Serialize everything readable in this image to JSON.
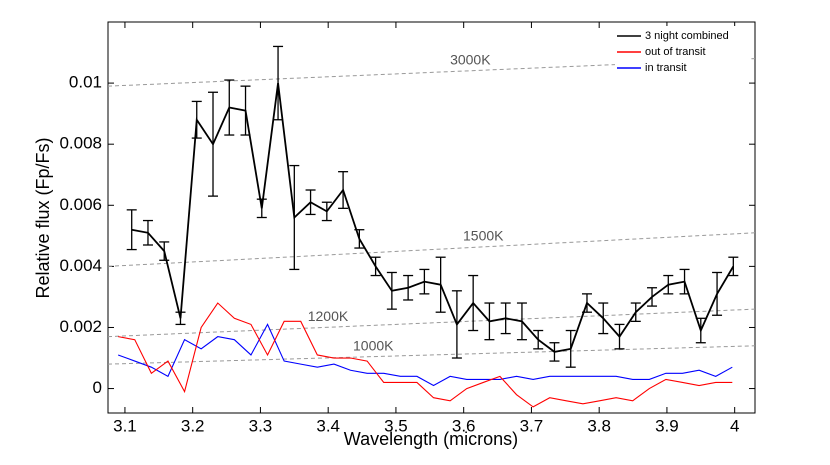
{
  "chart_data": {
    "type": "line",
    "xlabel": "Wavelength (microns)",
    "ylabel": "Relative flux (Fp/Fs)",
    "xlim": [
      3.075,
      4.03
    ],
    "ylim": [
      -0.0008,
      0.012
    ],
    "xticks": [
      3.1,
      3.2,
      3.3,
      3.4,
      3.5,
      3.6,
      3.7,
      3.8,
      3.9,
      4
    ],
    "yticks": [
      0,
      0.002,
      0.004,
      0.006,
      0.008,
      0.01
    ],
    "legend": "upper right",
    "series": [
      {
        "name": "3 night combined",
        "color": "#000000",
        "x": [
          3.11,
          3.134,
          3.158,
          3.182,
          3.206,
          3.23,
          3.254,
          3.278,
          3.302,
          3.326,
          3.35,
          3.374,
          3.398,
          3.422,
          3.446,
          3.47,
          3.494,
          3.518,
          3.542,
          3.566,
          3.59,
          3.614,
          3.638,
          3.662,
          3.686,
          3.71,
          3.734,
          3.758,
          3.782,
          3.806,
          3.83,
          3.854,
          3.878,
          3.902,
          3.926,
          3.95,
          3.974,
          3.998
        ],
        "values": [
          0.0052,
          0.0051,
          0.0045,
          0.0023,
          0.0088,
          0.008,
          0.0092,
          0.0091,
          0.0059,
          0.01,
          0.0056,
          0.0061,
          0.0058,
          0.0065,
          0.0049,
          0.004,
          0.0032,
          0.0033,
          0.0035,
          0.0034,
          0.0021,
          0.0028,
          0.0022,
          0.0023,
          0.0022,
          0.0016,
          0.0012,
          0.0013,
          0.0028,
          0.0023,
          0.0017,
          0.0025,
          0.003,
          0.0034,
          0.0035,
          0.0019,
          0.0031,
          0.004
        ],
        "errors": [
          0.00065,
          0.0004,
          0.0003,
          0.0002,
          0.0006,
          0.0017,
          0.0009,
          0.0008,
          0.0003,
          0.0012,
          0.0017,
          0.0004,
          0.0003,
          0.0006,
          0.0003,
          0.0003,
          0.0006,
          0.0004,
          0.0004,
          0.0009,
          0.0011,
          0.0009,
          0.0006,
          0.0005,
          0.0006,
          0.0003,
          0.0003,
          0.0006,
          0.0003,
          0.0005,
          0.0004,
          0.0003,
          0.0003,
          0.0003,
          0.0004,
          0.0004,
          0.0007,
          0.0003
        ]
      },
      {
        "name": "out of transit",
        "color": "#ff0000",
        "x": [
          3.09,
          3.1145,
          3.139,
          3.1635,
          3.188,
          3.2125,
          3.237,
          3.2615,
          3.286,
          3.3105,
          3.335,
          3.3595,
          3.384,
          3.4085,
          3.433,
          3.4575,
          3.482,
          3.5065,
          3.531,
          3.5555,
          3.58,
          3.6045,
          3.629,
          3.6535,
          3.678,
          3.7025,
          3.727,
          3.7515,
          3.776,
          3.8005,
          3.825,
          3.8495,
          3.874,
          3.8985,
          3.923,
          3.9475,
          3.972,
          3.9965
        ],
        "values": [
          0.0017,
          0.0016,
          0.0005,
          0.0009,
          -0.0001,
          0.002,
          0.0028,
          0.0023,
          0.0021,
          0.0011,
          0.0022,
          0.0022,
          0.0011,
          0.001,
          0.001,
          0.0009,
          0.0002,
          0.0002,
          0.0002,
          -0.0003,
          -0.0004,
          0,
          0.0002,
          0.0004,
          -0.0002,
          -0.0006,
          -0.0003,
          -0.0004,
          -0.0005,
          -0.0004,
          -0.0003,
          -0.0004,
          0,
          0.0003,
          0.0002,
          0.0001,
          0.0002,
          0.0002
        ]
      },
      {
        "name": "in transit",
        "color": "#0000ff",
        "x": [
          3.09,
          3.1145,
          3.139,
          3.1635,
          3.188,
          3.2125,
          3.237,
          3.2615,
          3.286,
          3.3105,
          3.335,
          3.3595,
          3.384,
          3.4085,
          3.433,
          3.4575,
          3.482,
          3.5065,
          3.531,
          3.5555,
          3.58,
          3.6045,
          3.629,
          3.6535,
          3.678,
          3.7025,
          3.727,
          3.7515,
          3.776,
          3.8005,
          3.825,
          3.8495,
          3.874,
          3.8985,
          3.923,
          3.9475,
          3.972,
          3.9965
        ],
        "values": [
          0.0011,
          0.0009,
          0.0007,
          0.0004,
          0.0016,
          0.0013,
          0.0017,
          0.0016,
          0.0011,
          0.0021,
          0.0009,
          0.0008,
          0.0007,
          0.0008,
          0.0006,
          0.0005,
          0.0005,
          0.0004,
          0.0004,
          0.0001,
          0.0004,
          0.0003,
          0.0003,
          0.0003,
          0.0004,
          0.0003,
          0.0004,
          0.0004,
          0.0004,
          0.0004,
          0.0004,
          0.0003,
          0.0003,
          0.0005,
          0.0005,
          0.0006,
          0.0004,
          0.0007
        ]
      }
    ],
    "annotations": [
      {
        "text": "3000K",
        "x": [
          3.075,
          4.03
        ],
        "y": [
          0.0099,
          0.0108
        ]
      },
      {
        "text": "1500K",
        "x": [
          3.075,
          4.03
        ],
        "y": [
          0.004,
          0.0051
        ]
      },
      {
        "text": "1200K",
        "x": [
          3.075,
          4.03
        ],
        "y": [
          0.0017,
          0.0026
        ]
      },
      {
        "text": "1000K",
        "x": [
          3.075,
          4.03
        ],
        "y": [
          0.0008,
          0.0014
        ]
      }
    ]
  }
}
